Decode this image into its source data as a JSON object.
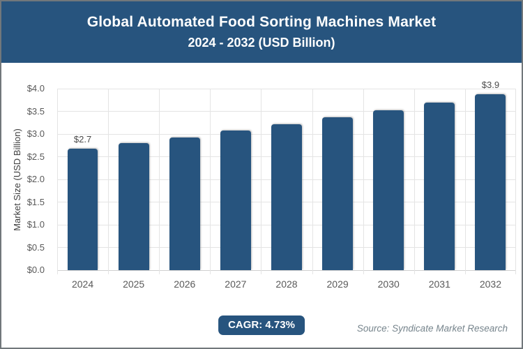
{
  "header": {
    "title_line1": "Global Automated Food Sorting Machines Market",
    "title_line2": "2024 - 2032 (USD Billion)"
  },
  "chart_data": {
    "type": "bar",
    "title": "Global Automated Food Sorting Machines Market 2024 - 2032 (USD Billion)",
    "categories": [
      "2024",
      "2025",
      "2026",
      "2027",
      "2028",
      "2029",
      "2030",
      "2031",
      "2032"
    ],
    "values": [
      2.67,
      2.8,
      2.93,
      3.07,
      3.22,
      3.37,
      3.53,
      3.69,
      3.87
    ],
    "point_labels": [
      "$2.7",
      "",
      "",
      "",
      "",
      "",
      "",
      "",
      "$3.9"
    ],
    "xlabel": "",
    "ylabel": "Market Size (USD Billion)",
    "ylim": [
      0,
      4.0
    ],
    "ytick_step": 0.5,
    "ytick_labels": [
      "$0.0",
      "$0.5",
      "$1.0",
      "$1.5",
      "$2.0",
      "$2.5",
      "$3.0",
      "$3.5",
      "$4.0"
    ],
    "grid": true,
    "legend": "none",
    "bar_color": "#27547e"
  },
  "theme": {
    "accent_color": "#27547e",
    "grid_color": "#e4e4e4",
    "tick_text_color": "#595959"
  },
  "footer": {
    "cagr_label": "CAGR: 4.73%",
    "source": "Source: Syndicate Market Research"
  }
}
